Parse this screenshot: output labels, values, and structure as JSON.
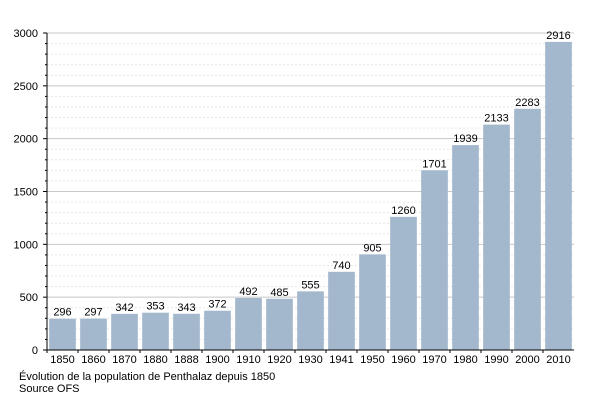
{
  "chart_data": {
    "type": "bar",
    "categories": [
      "1850",
      "1860",
      "1870",
      "1880",
      "1888",
      "1900",
      "1910",
      "1920",
      "1930",
      "1941",
      "1950",
      "1960",
      "1970",
      "1980",
      "1990",
      "2000",
      "2010"
    ],
    "values": [
      296,
      297,
      342,
      353,
      343,
      372,
      492,
      485,
      555,
      740,
      905,
      1260,
      1701,
      1939,
      2133,
      2283,
      2916
    ],
    "ylim": [
      0,
      3000
    ],
    "yticks": [
      0,
      500,
      1000,
      1500,
      2000,
      2500,
      3000
    ],
    "grid": true,
    "bar_color": "#a3b8cc"
  },
  "caption": {
    "line1": "Évolution de la population de Penthalaz depuis 1850",
    "line2": "Source OFS"
  }
}
